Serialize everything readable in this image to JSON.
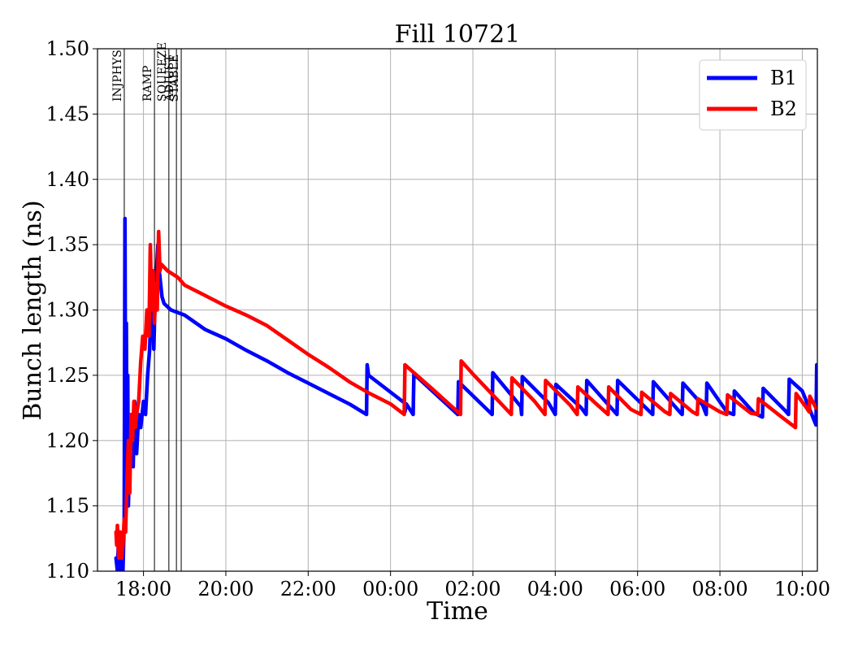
{
  "chart_data": {
    "type": "line",
    "title": "Fill 10721",
    "xlabel": "Time",
    "ylabel": "Bunch length (ns)",
    "ylim": [
      1.1,
      1.5
    ],
    "xlim": [
      "16:53",
      "10:22"
    ],
    "x_unit": "time of day (HH:MM), spanning midnight",
    "grid": true,
    "legend_position": "top-right",
    "y_ticks": [
      "1.10",
      "1.15",
      "1.20",
      "1.25",
      "1.30",
      "1.35",
      "1.40",
      "1.45",
      "1.50"
    ],
    "x_ticks": [
      "18:00",
      "20:00",
      "22:00",
      "00:00",
      "02:00",
      "04:00",
      "06:00",
      "08:00",
      "10:00"
    ],
    "phase_markers": [
      {
        "label": "INJPHYS",
        "time": "17:32"
      },
      {
        "label": "RAMP",
        "time": "18:16"
      },
      {
        "label": "SQUEEZE",
        "time": "18:37"
      },
      {
        "label": "ADJUST",
        "time": "18:48"
      },
      {
        "label": "STABLE",
        "time": "18:55"
      }
    ],
    "series": [
      {
        "name": "B1",
        "color": "#0000ff",
        "points": [
          [
            "17:20",
            1.11
          ],
          [
            "17:22",
            1.1
          ],
          [
            "17:24",
            1.13
          ],
          [
            "17:26",
            1.1
          ],
          [
            "17:28",
            1.12
          ],
          [
            "17:30",
            1.1
          ],
          [
            "17:32",
            1.14
          ],
          [
            "17:33",
            1.37
          ],
          [
            "17:34",
            1.2
          ],
          [
            "17:35",
            1.29
          ],
          [
            "17:36",
            1.17
          ],
          [
            "17:37",
            1.25
          ],
          [
            "17:38",
            1.15
          ],
          [
            "17:40",
            1.19
          ],
          [
            "17:43",
            1.22
          ],
          [
            "17:45",
            1.18
          ],
          [
            "17:47",
            1.23
          ],
          [
            "17:50",
            1.19
          ],
          [
            "17:53",
            1.22
          ],
          [
            "17:56",
            1.21
          ],
          [
            "18:00",
            1.23
          ],
          [
            "18:03",
            1.22
          ],
          [
            "18:06",
            1.25
          ],
          [
            "18:09",
            1.27
          ],
          [
            "18:11",
            1.3
          ],
          [
            "18:13",
            1.32
          ],
          [
            "18:15",
            1.27
          ],
          [
            "18:17",
            1.31
          ],
          [
            "18:19",
            1.33
          ],
          [
            "18:21",
            1.35
          ],
          [
            "18:23",
            1.33
          ],
          [
            "18:25",
            1.32
          ],
          [
            "18:27",
            1.31
          ],
          [
            "18:30",
            1.305
          ],
          [
            "18:40",
            1.3
          ],
          [
            "19:00",
            1.296
          ],
          [
            "19:30",
            1.285
          ],
          [
            "20:00",
            1.278
          ],
          [
            "20:30",
            1.269
          ],
          [
            "21:00",
            1.261
          ],
          [
            "21:30",
            1.252
          ],
          [
            "22:00",
            1.244
          ],
          [
            "22:30",
            1.236
          ],
          [
            "23:00",
            1.228
          ],
          [
            "23:25",
            1.22
          ],
          [
            "23:26",
            1.258
          ],
          [
            "23:28",
            1.25
          ],
          [
            "00:20",
            1.229
          ],
          [
            "00:21",
            1.222
          ],
          [
            "00:23",
            1.228
          ],
          [
            "00:33",
            1.22
          ],
          [
            "00:34",
            1.251
          ],
          [
            "01:38",
            1.22
          ],
          [
            "01:39",
            1.245
          ],
          [
            "02:28",
            1.22
          ],
          [
            "02:29",
            1.252
          ],
          [
            "03:10",
            1.226
          ],
          [
            "03:11",
            1.22
          ],
          [
            "03:12",
            1.249
          ],
          [
            "03:50",
            1.229
          ],
          [
            "04:00",
            1.22
          ],
          [
            "04:01",
            1.243
          ],
          [
            "04:38",
            1.225
          ],
          [
            "04:45",
            1.22
          ],
          [
            "04:46",
            1.246
          ],
          [
            "05:30",
            1.22
          ],
          [
            "05:31",
            1.246
          ],
          [
            "06:22",
            1.22
          ],
          [
            "06:23",
            1.245
          ],
          [
            "07:03",
            1.221
          ],
          [
            "07:05",
            1.22
          ],
          [
            "07:06",
            1.244
          ],
          [
            "07:35",
            1.227
          ],
          [
            "07:40",
            1.22
          ],
          [
            "07:41",
            1.244
          ],
          [
            "08:10",
            1.222
          ],
          [
            "08:20",
            1.22
          ],
          [
            "08:21",
            1.238
          ],
          [
            "08:50",
            1.221
          ],
          [
            "09:02",
            1.218
          ],
          [
            "09:03",
            1.24
          ],
          [
            "09:35",
            1.223
          ],
          [
            "09:40",
            1.22
          ],
          [
            "09:41",
            1.247
          ],
          [
            "10:00",
            1.238
          ],
          [
            "10:20",
            1.212
          ],
          [
            "10:21",
            1.258
          ],
          [
            "10:22",
            1.245
          ],
          [
            "10:23",
            1.238
          ],
          [
            "10:24",
            1.236
          ]
        ]
      },
      {
        "name": "B2",
        "color": "#ff0000",
        "points": [
          [
            "17:20",
            1.13
          ],
          [
            "17:21",
            1.12
          ],
          [
            "17:22",
            1.135
          ],
          [
            "17:24",
            1.11
          ],
          [
            "17:26",
            1.13
          ],
          [
            "17:28",
            1.11
          ],
          [
            "17:30",
            1.12
          ],
          [
            "17:32",
            1.14
          ],
          [
            "17:34",
            1.13
          ],
          [
            "17:36",
            1.17
          ],
          [
            "17:38",
            1.2
          ],
          [
            "17:40",
            1.16
          ],
          [
            "17:42",
            1.22
          ],
          [
            "17:44",
            1.2
          ],
          [
            "17:46",
            1.23
          ],
          [
            "17:48",
            1.21
          ],
          [
            "17:50",
            1.22
          ],
          [
            "17:53",
            1.23
          ],
          [
            "17:56",
            1.26
          ],
          [
            "17:59",
            1.28
          ],
          [
            "18:02",
            1.27
          ],
          [
            "18:05",
            1.3
          ],
          [
            "18:08",
            1.28
          ],
          [
            "18:10",
            1.35
          ],
          [
            "18:12",
            1.3
          ],
          [
            "18:14",
            1.33
          ],
          [
            "18:16",
            1.29
          ],
          [
            "18:18",
            1.32
          ],
          [
            "18:20",
            1.3
          ],
          [
            "18:22",
            1.36
          ],
          [
            "18:24",
            1.33
          ],
          [
            "18:26",
            1.335
          ],
          [
            "18:35",
            1.33
          ],
          [
            "18:50",
            1.325
          ],
          [
            "19:00",
            1.319
          ],
          [
            "19:30",
            1.311
          ],
          [
            "20:00",
            1.303
          ],
          [
            "20:30",
            1.296
          ],
          [
            "21:00",
            1.288
          ],
          [
            "21:30",
            1.277
          ],
          [
            "22:00",
            1.266
          ],
          [
            "22:30",
            1.256
          ],
          [
            "23:00",
            1.245
          ],
          [
            "23:30",
            1.236
          ],
          [
            "00:00",
            1.228
          ],
          [
            "00:20",
            1.22
          ],
          [
            "00:21",
            1.258
          ],
          [
            "01:00",
            1.24
          ],
          [
            "01:42",
            1.22
          ],
          [
            "01:43",
            1.261
          ],
          [
            "02:00",
            1.251
          ],
          [
            "02:56",
            1.22
          ],
          [
            "02:57",
            1.248
          ],
          [
            "03:30",
            1.23
          ],
          [
            "03:45",
            1.22
          ],
          [
            "03:46",
            1.246
          ],
          [
            "04:22",
            1.227
          ],
          [
            "04:32",
            1.22
          ],
          [
            "04:33",
            1.241
          ],
          [
            "05:00",
            1.228
          ],
          [
            "05:17",
            1.22
          ],
          [
            "05:18",
            1.241
          ],
          [
            "05:50",
            1.224
          ],
          [
            "06:05",
            1.22
          ],
          [
            "06:06",
            1.237
          ],
          [
            "06:40",
            1.222
          ],
          [
            "06:47",
            1.22
          ],
          [
            "06:48",
            1.236
          ],
          [
            "07:20",
            1.222
          ],
          [
            "07:27",
            1.22
          ],
          [
            "07:28",
            1.232
          ],
          [
            "08:00",
            1.222
          ],
          [
            "08:10",
            1.22
          ],
          [
            "08:11",
            1.235
          ],
          [
            "08:45",
            1.221
          ],
          [
            "08:55",
            1.22
          ],
          [
            "08:56",
            1.232
          ],
          [
            "09:30",
            1.218
          ],
          [
            "09:50",
            1.21
          ],
          [
            "09:51",
            1.236
          ],
          [
            "10:05",
            1.226
          ],
          [
            "10:10",
            1.222
          ],
          [
            "10:11",
            1.234
          ],
          [
            "10:20",
            1.225
          ],
          [
            "10:24",
            1.224
          ]
        ]
      }
    ]
  }
}
